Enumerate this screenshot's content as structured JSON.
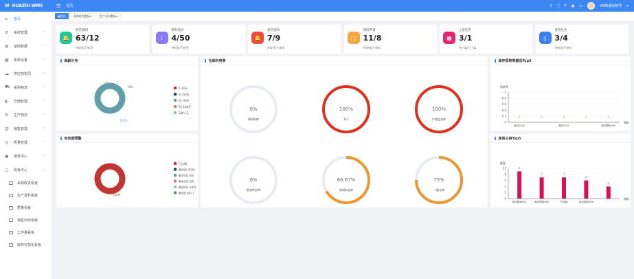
{
  "app": {
    "title": "HUAZHI WMS",
    "breadcrumb": "首页",
    "user": "WMS演示账号"
  },
  "sidebar": {
    "items": [
      {
        "label": "首页",
        "icon": "home-icon",
        "active": true
      },
      {
        "label": "系统管理",
        "icon": "gear-icon"
      },
      {
        "label": "基础数据",
        "icon": "database-icon"
      },
      {
        "label": "系统设置",
        "icon": "settings-icon"
      },
      {
        "label": "供应商协同",
        "icon": "cloud-icon"
      },
      {
        "label": "采购物流",
        "icon": "truck-icon"
      },
      {
        "label": "仓储管理",
        "icon": "warehouse-icon"
      },
      {
        "label": "生产物流",
        "icon": "factory-icon"
      },
      {
        "label": "销售管理",
        "icon": "sales-icon"
      },
      {
        "label": "质量管理",
        "icon": "quality-icon"
      },
      {
        "label": "报表中心",
        "icon": "report-icon"
      },
      {
        "label": "看板中心",
        "icon": "board-icon",
        "expanded": true
      }
    ],
    "subitems": [
      "采购收货看板",
      "生产发料看板",
      "质量看板",
      "销售出库看板",
      "工作量看板",
      "库存可视化看板"
    ]
  },
  "tabs": [
    {
      "label": "首页",
      "active": true
    },
    {
      "label": "采购收货看板"
    },
    {
      "label": "生产发料看板"
    }
  ],
  "cards": [
    {
      "title": "到货通知",
      "value": "63/12",
      "sub": "待收货/已收货",
      "color": "#1fc8a0",
      "icon": "bell-icon"
    },
    {
      "title": "来料检验",
      "value": "4/50",
      "sub": "待检验/已检验",
      "color": "#8a7cf5",
      "icon": "alert-icon"
    },
    {
      "title": "发货通知",
      "value": "7/9",
      "sub": "待发货/已发货",
      "color": "#ee4b3a",
      "icon": "bell-icon"
    },
    {
      "title": "领料申请",
      "value": "11/8",
      "sub": "待领料/已领料",
      "color": "#f6a440",
      "icon": "box-icon"
    },
    {
      "title": "上架任务",
      "value": "3/1",
      "sub": "待上架/已上架",
      "color": "#e5246e",
      "icon": "shelf-icon"
    },
    {
      "title": "拣货任务",
      "value": "3/4",
      "sub": "待拣货/已拣货",
      "color": "#3d7ef0",
      "icon": "calculator-icon"
    }
  ],
  "chart_data": [
    {
      "title": "库龄分布",
      "type": "pie",
      "categories": [
        "0-30天",
        "31-60天",
        "61-90天",
        "91-180天",
        "180+天"
      ],
      "values": [
        0,
        0,
        100,
        0,
        0
      ],
      "colors": [
        "#c23531",
        "#2f4554",
        "#61a0a8",
        "#d48265",
        "#91c7ae"
      ],
      "labels": [
        "0%",
        "0%",
        "100%"
      ]
    },
    {
      "title": "有效期预警",
      "type": "pie",
      "categories": [
        "已过期",
        "剩余(0-30天)",
        "剩余(31-60)",
        "剩余(61-90)",
        "剩余(91-180)",
        "剩余(180+)"
      ],
      "values": [
        100,
        0,
        0,
        0,
        0,
        0
      ],
      "colors": [
        "#c23531",
        "#2f4554",
        "#61a0a8",
        "#d48265",
        "#91c7ae",
        "#5b9a6e"
      ],
      "labels": [
        "100%"
      ]
    },
    {
      "title": "仓库利用率",
      "type": "gauge",
      "items": [
        {
          "name": "原材料库",
          "value": 0,
          "label": "0%",
          "color": "#e8ebf2"
        },
        {
          "name": "YL1",
          "value": 100,
          "label": "100%",
          "color": "#e0301e"
        },
        {
          "name": "产成品仓库",
          "value": 100,
          "label": "100%",
          "color": "#e0301e"
        },
        {
          "name": "测试库位04",
          "value": 0,
          "label": "0%",
          "color": "#e8ebf2"
        },
        {
          "name": "原材料仓库",
          "value": 66.67,
          "label": "66.67%",
          "color": "#f0962f"
        },
        {
          "name": "一般仓库",
          "value": 75,
          "label": "75%",
          "color": "#f0962f"
        }
      ]
    },
    {
      "title": "库存周转率最低Top5",
      "type": "bar",
      "ylabel": "周转率",
      "xlabel": "物料",
      "categories": [
        "测试2502",
        "",
        "测试2501",
        "",
        "测试物料099"
      ],
      "values": [
        0,
        0,
        0,
        0,
        0
      ],
      "ylim": [
        0,
        1
      ],
      "yticks": [
        "0",
        "0.2",
        "0.4",
        "0.6",
        "0.8",
        "1"
      ],
      "color": "#f0a050"
    },
    {
      "title": "库容占用Top5",
      "type": "bar",
      "ylabel": "数量",
      "xlabel": "物料",
      "categories": [
        "测试物料001",
        "测试物料002",
        "产成品",
        "测试物料999",
        ""
      ],
      "values": [
        9,
        7,
        7,
        6,
        4
      ],
      "ylim": [
        0,
        10
      ],
      "yticks": [
        "0",
        "2",
        "4",
        "6",
        "8",
        "10"
      ],
      "color": "#d6105a"
    }
  ]
}
